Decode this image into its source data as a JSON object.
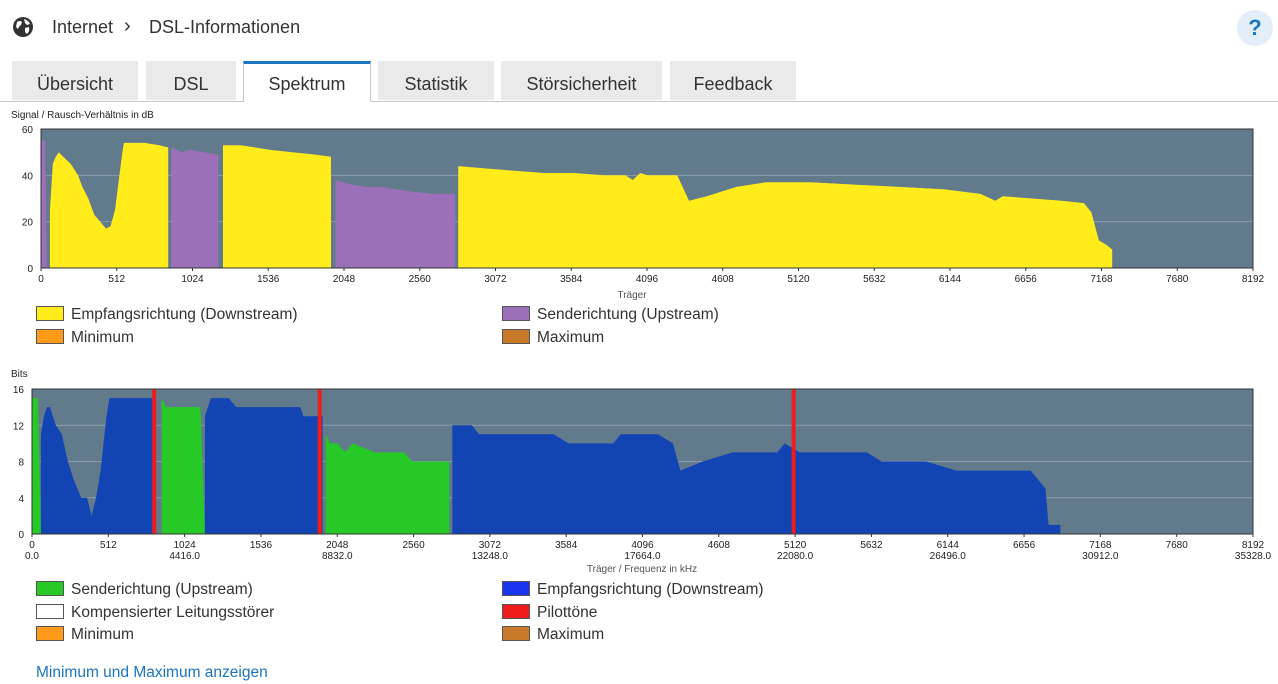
{
  "breadcrumb": {
    "parent": "Internet",
    "separator": "›",
    "current": "DSL-Informationen"
  },
  "help_label": "?",
  "tabs": [
    {
      "label": "Übersicht",
      "active": false
    },
    {
      "label": "DSL",
      "active": false
    },
    {
      "label": "Spektrum",
      "active": true
    },
    {
      "label": "Statistik",
      "active": false
    },
    {
      "label": "Störsicherheit",
      "active": false
    },
    {
      "label": "Feedback",
      "active": false
    }
  ],
  "colors": {
    "accent": "#1a75c2",
    "plot_bg": "#617a8c",
    "downstream_snr": "#ffec1a",
    "upstream_snr": "#9b70b8",
    "upstream_bits": "#26c926",
    "downstream_bits": "#1344b4",
    "pilot": "#ee1c1c",
    "minimum": "#ff9a1a",
    "maximum": "#c87a2a"
  },
  "snr_chart": {
    "chart_data": {
      "type": "area",
      "title": "Signal / Rausch-Verhältnis in dB",
      "ylabel": "Signal / Rausch-Verhältnis in dB",
      "xlabel": "Träger",
      "xlim": [
        0,
        8192
      ],
      "ylim": [
        0,
        60
      ],
      "yticks": [
        "0",
        "20",
        "40",
        "60"
      ],
      "xticks": [
        "0",
        "512",
        "1024",
        "1536",
        "2048",
        "2560",
        "3072",
        "3584",
        "4096",
        "4608",
        "5120",
        "5632",
        "6144",
        "6656",
        "7168",
        "7680",
        "8192"
      ],
      "series": [
        {
          "name": "Senderichtung (Upstream)",
          "color_key": "upstream_snr",
          "points": [
            [
              0,
              0
            ],
            [
              0,
              55
            ],
            [
              30,
              55
            ],
            [
              40,
              0
            ]
          ]
        },
        {
          "name": "Empfangsrichtung (Downstream)",
          "color_key": "downstream_snr",
          "points": [
            [
              60,
              0
            ],
            [
              60,
              25
            ],
            [
              80,
              45
            ],
            [
              100,
              48
            ],
            [
              120,
              50
            ],
            [
              150,
              48
            ],
            [
              200,
              45
            ],
            [
              250,
              40
            ],
            [
              280,
              35
            ],
            [
              320,
              30
            ],
            [
              360,
              23
            ],
            [
              400,
              20
            ],
            [
              440,
              17
            ],
            [
              470,
              18
            ],
            [
              500,
              25
            ],
            [
              530,
              40
            ],
            [
              550,
              50
            ],
            [
              560,
              54
            ],
            [
              620,
              54
            ],
            [
              700,
              54
            ],
            [
              800,
              53
            ],
            [
              860,
              52
            ],
            [
              860,
              0
            ]
          ]
        },
        {
          "name": "Senderichtung (Upstream)",
          "color_key": "upstream_snr",
          "points": [
            [
              880,
              0
            ],
            [
              880,
              52
            ],
            [
              950,
              50
            ],
            [
              1000,
              51
            ],
            [
              1100,
              50
            ],
            [
              1200,
              49
            ],
            [
              1200,
              0
            ]
          ]
        },
        {
          "name": "Empfangsrichtung (Downstream)",
          "color_key": "downstream_snr",
          "points": [
            [
              1230,
              0
            ],
            [
              1230,
              53
            ],
            [
              1350,
              53
            ],
            [
              1450,
              52
            ],
            [
              1550,
              51
            ],
            [
              1700,
              50
            ],
            [
              1850,
              49
            ],
            [
              1960,
              48
            ],
            [
              1960,
              0
            ]
          ]
        },
        {
          "name": "Senderichtung (Upstream)",
          "color_key": "upstream_snr",
          "points": [
            [
              1990,
              0
            ],
            [
              1990,
              38
            ],
            [
              2100,
              36
            ],
            [
              2200,
              35
            ],
            [
              2300,
              35
            ],
            [
              2400,
              34
            ],
            [
              2500,
              33
            ],
            [
              2650,
              32
            ],
            [
              2800,
              32
            ],
            [
              2800,
              0
            ]
          ]
        },
        {
          "name": "Empfangsrichtung (Downstream)",
          "color_key": "downstream_snr",
          "points": [
            [
              2820,
              0
            ],
            [
              2820,
              44
            ],
            [
              3000,
              43
            ],
            [
              3200,
              42
            ],
            [
              3400,
              41
            ],
            [
              3600,
              41
            ],
            [
              3800,
              40
            ],
            [
              3950,
              40
            ],
            [
              4000,
              38
            ],
            [
              4050,
              41
            ],
            [
              4100,
              40
            ],
            [
              4300,
              40
            ],
            [
              4380,
              29
            ],
            [
              4500,
              31
            ],
            [
              4700,
              35
            ],
            [
              4900,
              37
            ],
            [
              5200,
              37
            ],
            [
              5500,
              36
            ],
            [
              5800,
              35
            ],
            [
              6100,
              34
            ],
            [
              6350,
              32
            ],
            [
              6450,
              29
            ],
            [
              6500,
              31
            ],
            [
              6700,
              30
            ],
            [
              6900,
              29
            ],
            [
              7050,
              28
            ],
            [
              7100,
              24
            ],
            [
              7150,
              12
            ],
            [
              7200,
              10
            ],
            [
              7240,
              8
            ],
            [
              7240,
              0
            ]
          ]
        }
      ]
    },
    "legend": [
      {
        "label": "Empfangsrichtung (Downstream)",
        "color_key": "downstream_snr"
      },
      {
        "label": "Senderichtung (Upstream)",
        "color_key": "upstream_snr"
      },
      {
        "label": "Minimum",
        "color_key": "minimum"
      },
      {
        "label": "Maximum",
        "color_key": "maximum"
      }
    ]
  },
  "bits_chart": {
    "chart_data": {
      "type": "area",
      "title": "Bits",
      "ylabel": "Bits",
      "xlabel": "Träger / Frequenz in kHz",
      "xlim": [
        0,
        8192
      ],
      "ylim": [
        0,
        16
      ],
      "yticks": [
        "0",
        "4",
        "8",
        "12",
        "16"
      ],
      "xticks": [
        "0",
        "512",
        "1024",
        "1536",
        "2048",
        "2560",
        "3072",
        "3584",
        "4096",
        "4608",
        "5120",
        "5632",
        "6144",
        "6656",
        "7168",
        "7680",
        "8192"
      ],
      "freq_ticks": [
        {
          "carrier": 0,
          "label": "0.0"
        },
        {
          "carrier": 1024,
          "label": "4416.0"
        },
        {
          "carrier": 2048,
          "label": "8832.0"
        },
        {
          "carrier": 3072,
          "label": "13248.0"
        },
        {
          "carrier": 4096,
          "label": "17664.0"
        },
        {
          "carrier": 5120,
          "label": "22080.0"
        },
        {
          "carrier": 6144,
          "label": "26496.0"
        },
        {
          "carrier": 7168,
          "label": "30912.0"
        },
        {
          "carrier": 8192,
          "label": "35328.0"
        }
      ],
      "series": [
        {
          "name": "Senderichtung (Upstream)",
          "color_key": "upstream_bits",
          "points": [
            [
              0,
              0
            ],
            [
              0,
              15
            ],
            [
              40,
              15
            ],
            [
              60,
              0
            ]
          ]
        },
        {
          "name": "Empfangsrichtung (Downstream)",
          "color_key": "downstream_bits",
          "points": [
            [
              60,
              0
            ],
            [
              60,
              11
            ],
            [
              80,
              13
            ],
            [
              100,
              14
            ],
            [
              120,
              14
            ],
            [
              140,
              13
            ],
            [
              160,
              12
            ],
            [
              200,
              11
            ],
            [
              240,
              8
            ],
            [
              280,
              6
            ],
            [
              330,
              4
            ],
            [
              370,
              4
            ],
            [
              400,
              2
            ],
            [
              430,
              4
            ],
            [
              460,
              7
            ],
            [
              500,
              13
            ],
            [
              520,
              15
            ],
            [
              830,
              15
            ],
            [
              830,
              0
            ]
          ]
        },
        {
          "name": "Senderichtung (Upstream)",
          "color_key": "upstream_bits",
          "points": [
            [
              870,
              0
            ],
            [
              870,
              15
            ],
            [
              900,
              14
            ],
            [
              1000,
              14
            ],
            [
              1130,
              14
            ],
            [
              1160,
              0
            ]
          ]
        },
        {
          "name": "Empfangsrichtung (Downstream)",
          "color_key": "downstream_bits",
          "points": [
            [
              1160,
              0
            ],
            [
              1160,
              13
            ],
            [
              1200,
              15
            ],
            [
              1320,
              15
            ],
            [
              1370,
              14
            ],
            [
              1800,
              14
            ],
            [
              1820,
              13
            ],
            [
              1950,
              13
            ],
            [
              1950,
              0
            ]
          ]
        },
        {
          "name": "Senderichtung (Upstream)",
          "color_key": "upstream_bits",
          "points": [
            [
              1970,
              0
            ],
            [
              1970,
              11
            ],
            [
              2000,
              10
            ],
            [
              2050,
              10
            ],
            [
              2100,
              9
            ],
            [
              2150,
              10
            ],
            [
              2300,
              9
            ],
            [
              2500,
              9
            ],
            [
              2550,
              8
            ],
            [
              2800,
              8
            ],
            [
              2800,
              0
            ]
          ]
        },
        {
          "name": "Empfangsrichtung (Downstream)",
          "color_key": "downstream_bits",
          "points": [
            [
              2820,
              0
            ],
            [
              2820,
              12
            ],
            [
              2950,
              12
            ],
            [
              3000,
              11
            ],
            [
              3500,
              11
            ],
            [
              3600,
              10
            ],
            [
              3900,
              10
            ],
            [
              3950,
              11
            ],
            [
              4200,
              11
            ],
            [
              4300,
              10
            ],
            [
              4350,
              7
            ],
            [
              4500,
              8
            ],
            [
              4700,
              9
            ],
            [
              5000,
              9
            ],
            [
              5050,
              10
            ],
            [
              5150,
              9
            ],
            [
              5600,
              9
            ],
            [
              5700,
              8
            ],
            [
              6000,
              8
            ],
            [
              6200,
              7
            ],
            [
              6700,
              7
            ],
            [
              6750,
              6
            ],
            [
              6800,
              5
            ],
            [
              6820,
              1
            ],
            [
              6900,
              1
            ],
            [
              6900,
              0
            ]
          ]
        }
      ],
      "pilots": [
        820,
        1930,
        5110
      ]
    },
    "legend": [
      {
        "label": "Senderichtung (Upstream)",
        "color_key": "upstream_bits"
      },
      {
        "label": "Empfangsrichtung (Downstream)",
        "color_key": "downstream_bits"
      },
      {
        "label": "Kompensierter Leitungsstörer",
        "color_key": "white"
      },
      {
        "label": "Pilottöne",
        "color_key": "pilot"
      },
      {
        "label": "Minimum",
        "color_key": "minimum"
      },
      {
        "label": "Maximum",
        "color_key": "maximum"
      }
    ]
  },
  "minmax_link": "Minimum und Maximum anzeigen"
}
